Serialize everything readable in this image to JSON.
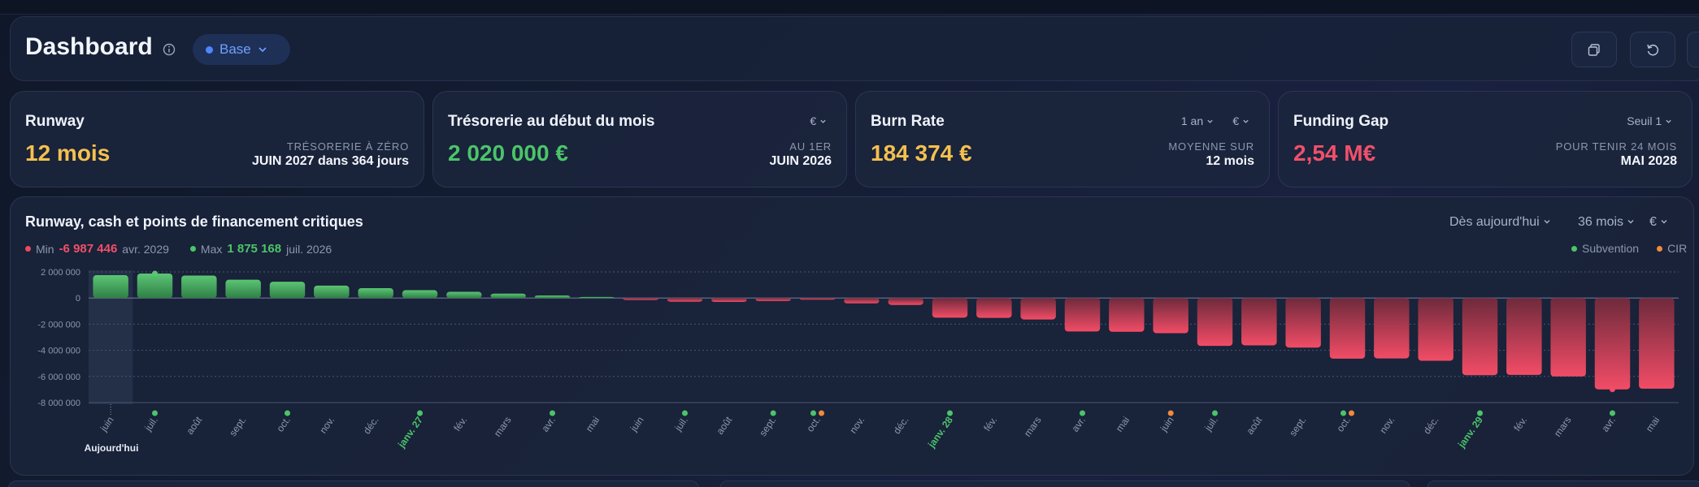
{
  "header": {
    "title": "Dashboard",
    "scenario_label": "Base"
  },
  "cards": {
    "runway": {
      "title": "Runway",
      "value": "12 mois",
      "sub_label": "TRÉSORERIE À ZÉRO",
      "sub_value": "JUIN 2027 dans 364 jours",
      "value_color": "#f4c04f"
    },
    "treasury": {
      "title": "Trésorerie au début du mois",
      "value": "2 020 000 €",
      "currency": "€",
      "sub_label": "AU 1ER",
      "sub_value": "JUIN 2026",
      "value_color": "#4bc46a"
    },
    "burn": {
      "title": "Burn Rate",
      "value": "184 374 €",
      "period": "1 an",
      "currency": "€",
      "sub_label": "MOYENNE SUR",
      "sub_value": "12 mois",
      "value_color": "#f4c04f"
    },
    "gap": {
      "title": "Funding Gap",
      "value": "2,54 M€",
      "threshold": "Seuil 1",
      "sub_label": "POUR TENIR 24 MOIS",
      "sub_value": "MAI 2028",
      "value_color": "#f0506a"
    }
  },
  "chart_panel": {
    "title": "Runway, cash et points de financement critiques",
    "ctrl_start": "Dès aujourd'hui",
    "ctrl_range": "36 mois",
    "ctrl_currency": "€",
    "min_label": "Min",
    "min_value": "-6 987 446",
    "min_date": "avr. 2029",
    "max_label": "Max",
    "max_value": "1 875 168",
    "max_date": "juil. 2026",
    "legend_subvention": "Subvention",
    "legend_cir": "CIR",
    "today_label": "Aujourd'hui"
  },
  "colors": {
    "positive": "#4bb465",
    "negative": "#e84a62",
    "subvention": "#4bc46a",
    "cir": "#f08a3c",
    "year_label": "#4bc46a"
  },
  "chart_data": {
    "type": "bar",
    "ylim": [
      -8000000,
      2000000
    ],
    "y_ticks": [
      2000000,
      0,
      -2000000,
      -4000000,
      -6000000,
      -8000000
    ],
    "y_tick_labels": [
      "2 000 000",
      "0",
      "-2 000 000",
      "-4 000 000",
      "-6 000 000",
      "-8 000 000"
    ],
    "categories": [
      "juin",
      "juil.",
      "août",
      "sept.",
      "oct.",
      "nov.",
      "déc.",
      "janv. 27",
      "fév.",
      "mars",
      "avr.",
      "mai",
      "juin",
      "juil.",
      "août",
      "sept.",
      "oct.",
      "nov.",
      "déc.",
      "janv. 28",
      "fév.",
      "mars",
      "avr.",
      "mai",
      "juin",
      "juil.",
      "août",
      "sept.",
      "oct.",
      "nov.",
      "déc.",
      "janv. 29",
      "fév.",
      "mars",
      "avr.",
      "mai"
    ],
    "year_start_indices": [
      7,
      19,
      31
    ],
    "values": [
      1750000,
      1875168,
      1720000,
      1400000,
      1250000,
      950000,
      760000,
      600000,
      480000,
      340000,
      200000,
      80000,
      -150000,
      -280000,
      -300000,
      -230000,
      -130000,
      -410000,
      -530000,
      -1500000,
      -1520000,
      -1640000,
      -2560000,
      -2580000,
      -2690000,
      -3660000,
      -3620000,
      -3790000,
      -4640000,
      -4620000,
      -4800000,
      -5900000,
      -5880000,
      -6000000,
      -6987446,
      -6940000
    ],
    "subvention_months": [
      1,
      4,
      7,
      10,
      13,
      15,
      16,
      19,
      22,
      25,
      28,
      31,
      34
    ],
    "cir_months": [
      16,
      24,
      28
    ],
    "series": [
      {
        "name": "Subvention"
      },
      {
        "name": "CIR"
      }
    ]
  }
}
